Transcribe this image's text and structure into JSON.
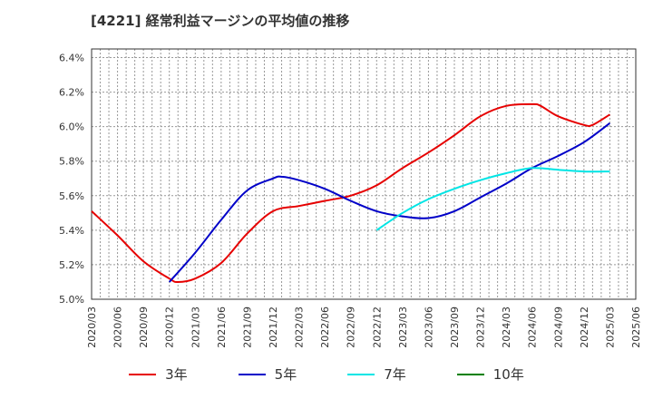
{
  "chart_data": {
    "type": "line",
    "title": "[4221]  経常利益マージンの平均値の推移",
    "xlabel": "",
    "ylabel": "",
    "x_ticks": [
      "2020/03",
      "2020/06",
      "2020/09",
      "2020/12",
      "2021/03",
      "2021/06",
      "2021/09",
      "2021/12",
      "2022/03",
      "2022/06",
      "2022/09",
      "2022/12",
      "2023/03",
      "2023/06",
      "2023/09",
      "2023/12",
      "2024/03",
      "2024/06",
      "2024/09",
      "2024/12",
      "2025/03",
      "2025/06"
    ],
    "y_ticks": [
      "5.0%",
      "5.2%",
      "5.4%",
      "5.6%",
      "5.8%",
      "6.0%",
      "6.2%",
      "6.4%"
    ],
    "ylim": [
      5.0,
      6.45
    ],
    "grid": true,
    "legend_position": "bottom",
    "series": [
      {
        "name": "3年",
        "color": "#e60000",
        "points": [
          [
            "2020/03",
            5.51
          ],
          [
            "2020/06",
            5.37
          ],
          [
            "2020/09",
            5.22
          ],
          [
            "2020/12",
            5.12
          ],
          [
            "2021/01",
            5.1
          ],
          [
            "2021/03",
            5.12
          ],
          [
            "2021/06",
            5.21
          ],
          [
            "2021/09",
            5.38
          ],
          [
            "2021/12",
            5.51
          ],
          [
            "2022/03",
            5.54
          ],
          [
            "2022/06",
            5.57
          ],
          [
            "2022/09",
            5.6
          ],
          [
            "2022/12",
            5.66
          ],
          [
            "2023/03",
            5.76
          ],
          [
            "2023/06",
            5.85
          ],
          [
            "2023/09",
            5.95
          ],
          [
            "2023/12",
            6.06
          ],
          [
            "2024/03",
            6.12
          ],
          [
            "2024/06",
            6.13
          ],
          [
            "2024/07",
            6.12
          ],
          [
            "2024/09",
            6.06
          ],
          [
            "2024/12",
            6.01
          ],
          [
            "2025/01",
            6.01
          ],
          [
            "2025/03",
            6.07
          ]
        ]
      },
      {
        "name": "5年",
        "color": "#0000c8",
        "points": [
          [
            "2020/12",
            5.1
          ],
          [
            "2021/03",
            5.27
          ],
          [
            "2021/06",
            5.46
          ],
          [
            "2021/09",
            5.63
          ],
          [
            "2021/12",
            5.7
          ],
          [
            "2022/01",
            5.71
          ],
          [
            "2022/03",
            5.69
          ],
          [
            "2022/06",
            5.64
          ],
          [
            "2022/09",
            5.57
          ],
          [
            "2022/12",
            5.51
          ],
          [
            "2023/03",
            5.48
          ],
          [
            "2023/06",
            5.47
          ],
          [
            "2023/09",
            5.51
          ],
          [
            "2023/12",
            5.59
          ],
          [
            "2024/03",
            5.67
          ],
          [
            "2024/06",
            5.76
          ],
          [
            "2024/09",
            5.83
          ],
          [
            "2024/12",
            5.91
          ],
          [
            "2025/03",
            6.02
          ]
        ]
      },
      {
        "name": "7年",
        "color": "#00e5e5",
        "points": [
          [
            "2022/12",
            5.4
          ],
          [
            "2023/03",
            5.5
          ],
          [
            "2023/06",
            5.58
          ],
          [
            "2023/09",
            5.64
          ],
          [
            "2023/12",
            5.69
          ],
          [
            "2024/03",
            5.73
          ],
          [
            "2024/06",
            5.76
          ],
          [
            "2024/09",
            5.75
          ],
          [
            "2024/12",
            5.74
          ],
          [
            "2025/03",
            5.74
          ]
        ]
      },
      {
        "name": "10年",
        "color": "#008000",
        "points": []
      }
    ]
  }
}
